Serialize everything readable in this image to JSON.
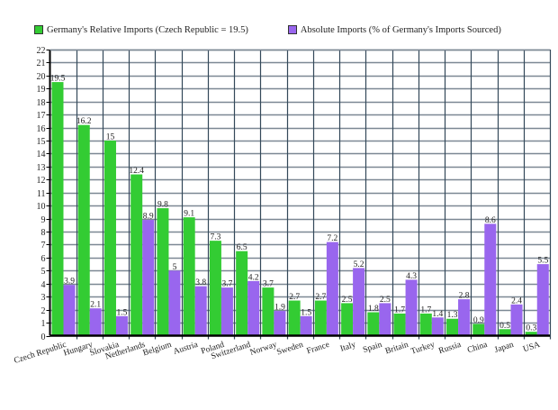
{
  "chart_data": {
    "type": "bar",
    "title": "",
    "xlabel": "",
    "ylabel": "",
    "ylim": [
      0,
      22
    ],
    "ytick_step": 1,
    "grid": true,
    "legend_position": "top-left",
    "categories": [
      "Czech Republic",
      "Hungary",
      "Slovakia",
      "Netherlands",
      "Belgium",
      "Austria",
      "Poland",
      "Switzerland",
      "Norway",
      "Sweden",
      "France",
      "Italy",
      "Spain",
      "Britain",
      "Turkey",
      "Russia",
      "China",
      "Japan",
      "USA"
    ],
    "series": [
      {
        "name": "Germany's Relative Imports (Czech Republic = 19.5)",
        "color": "#33cc33",
        "values": [
          19.5,
          16.2,
          15,
          12.4,
          9.8,
          9.1,
          7.3,
          6.5,
          3.7,
          2.7,
          2.7,
          2.5,
          1.8,
          1.7,
          1.7,
          1.3,
          0.9,
          0.5,
          0.3
        ]
      },
      {
        "name": "Absolute Imports (% of Germany's Imports Sourced)",
        "color": "#9966ee",
        "values": [
          3.9,
          2.1,
          1.5,
          8.9,
          5,
          3.8,
          3.7,
          4.2,
          1.9,
          1.5,
          7.2,
          5.2,
          2.5,
          4.3,
          1.4,
          2.8,
          8.6,
          2.4,
          5.5
        ]
      }
    ]
  },
  "legend": {
    "items": [
      {
        "label": "Germany's Relative Imports (Czech Republic = 19.5)",
        "color": "#33cc33"
      },
      {
        "label": "Absolute Imports (% of Germany's Imports Sourced)",
        "color": "#9966ee"
      }
    ]
  },
  "style": {
    "grid_h_color": "#7c8894",
    "grid_v_color": "#34495a",
    "axis_color": "#000000"
  }
}
